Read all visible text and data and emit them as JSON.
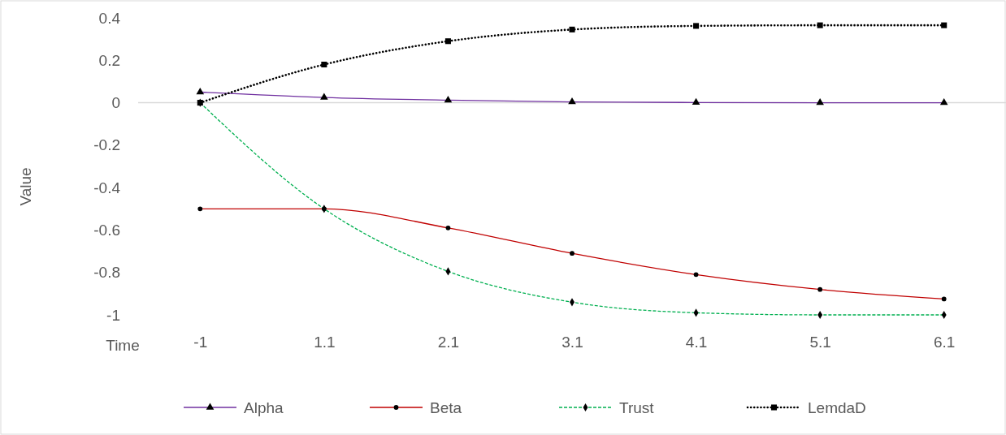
{
  "chart_data": {
    "type": "line",
    "xlabel": "Time",
    "ylabel": "Value",
    "categories": [
      "-1",
      "1.1",
      "2.1",
      "3.1",
      "4.1",
      "5.1",
      "6.1"
    ],
    "ylim": [
      -1,
      0.4
    ],
    "yticks": [
      {
        "value": -1,
        "label": "-1"
      },
      {
        "value": -0.8,
        "label": "-0.8"
      },
      {
        "value": -0.6,
        "label": "-0.6"
      },
      {
        "value": -0.4,
        "label": "-0.4"
      },
      {
        "value": -0.2,
        "label": "-0.2"
      },
      {
        "value": 0,
        "label": "0"
      },
      {
        "value": 0.2,
        "label": "0.2"
      },
      {
        "value": 0.4,
        "label": "0.4"
      }
    ],
    "legend": "bottom",
    "series": [
      {
        "name": "Alpha",
        "color": "#7030a0",
        "marker": "triangle",
        "line_style": "solid",
        "values": [
          0.05,
          0.025,
          0.012,
          0.004,
          0.001,
          0,
          0
        ]
      },
      {
        "name": "Beta",
        "color": "#c00000",
        "marker": "circle",
        "line_style": "solid",
        "values": [
          -0.5,
          -0.5,
          -0.59,
          -0.71,
          -0.81,
          -0.88,
          -0.925
        ]
      },
      {
        "name": "Trust",
        "color": "#00b050",
        "marker": "diamond",
        "line_style": "dashed",
        "values": [
          0,
          -0.5,
          -0.795,
          -0.94,
          -0.99,
          -1,
          -1
        ]
      },
      {
        "name": "LemdaD",
        "color": "#000000",
        "marker": "square",
        "line_style": "dotted",
        "values": [
          0,
          0.18,
          0.29,
          0.345,
          0.362,
          0.365,
          0.365
        ]
      }
    ]
  }
}
